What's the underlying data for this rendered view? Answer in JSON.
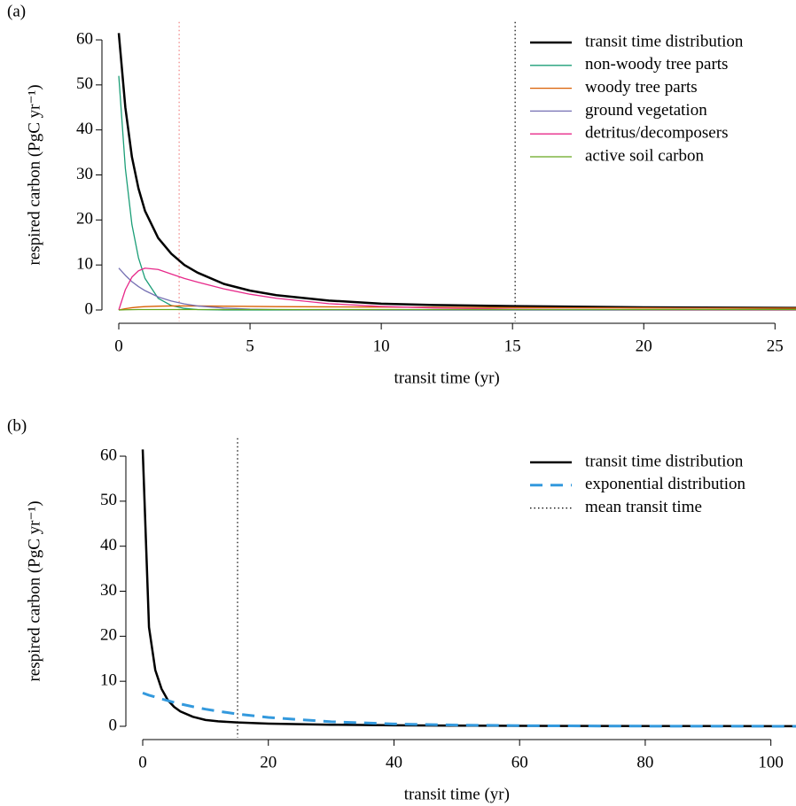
{
  "chart_data": [
    {
      "type": "line",
      "panel_label": "(a)",
      "xlabel": "transit time (yr)",
      "ylabel": "respired carbon (PgC yr⁻¹)",
      "x": [
        0,
        0.25,
        0.5,
        0.75,
        1,
        1.5,
        2,
        2.5,
        3,
        4,
        5,
        6,
        8,
        10,
        12,
        15,
        20,
        26
      ],
      "series": [
        {
          "name": "transit time distribution",
          "color": "#000000",
          "linewidth": 2.5,
          "values": [
            61.5,
            45,
            34,
            27,
            22,
            16,
            12.5,
            10,
            8.3,
            5.8,
            4.3,
            3.3,
            2.1,
            1.4,
            1.1,
            0.85,
            0.6,
            0.45
          ]
        },
        {
          "name": "non-woody tree parts",
          "color": "#1b9e77",
          "linewidth": 1.3,
          "values": [
            52,
            31.5,
            19,
            11.6,
            7,
            2.6,
            1,
            0.35,
            0.1,
            0,
            0,
            0,
            0,
            0,
            0,
            0,
            0,
            0
          ]
        },
        {
          "name": "woody tree parts",
          "color": "#d95f02",
          "linewidth": 1.3,
          "values": [
            0,
            0.3,
            0.5,
            0.65,
            0.75,
            0.85,
            0.9,
            0.9,
            0.9,
            0.85,
            0.8,
            0.75,
            0.7,
            0.65,
            0.6,
            0.55,
            0.45,
            0.4
          ]
        },
        {
          "name": "ground vegetation",
          "color": "#7570b3",
          "linewidth": 1.3,
          "values": [
            9.3,
            7.7,
            6.3,
            5.2,
            4.3,
            2.9,
            2,
            1.35,
            0.9,
            0.43,
            0.2,
            0.1,
            0.02,
            0,
            0,
            0,
            0,
            0
          ]
        },
        {
          "name": "detritus/decomposers",
          "color": "#e7298a",
          "linewidth": 1.3,
          "values": [
            0,
            4.5,
            7.3,
            8.7,
            9.3,
            9,
            8,
            7,
            6.2,
            4.7,
            3.5,
            2.6,
            1.4,
            0.8,
            0.45,
            0.2,
            0.07,
            0.02
          ]
        },
        {
          "name": "active soil carbon",
          "color": "#66a61e",
          "linewidth": 1.3,
          "values": [
            0,
            0.05,
            0.08,
            0.1,
            0.1,
            0.1,
            0.1,
            0.1,
            0.1,
            0.1,
            0.1,
            0.1,
            0.1,
            0.1,
            0.1,
            0.1,
            0.1,
            0.1
          ]
        }
      ],
      "vlines": [
        {
          "value": 2.3,
          "color": "#f08080"
        },
        {
          "value": 15.1,
          "color": "#000000"
        }
      ],
      "xlim": [
        0,
        25.8
      ],
      "xticks": [
        0,
        5,
        10,
        15,
        20,
        25
      ],
      "ylim": [
        -2.5,
        64
      ],
      "yticks": [
        0,
        10,
        20,
        30,
        40,
        50,
        60
      ],
      "legend": "top-right"
    },
    {
      "type": "line",
      "panel_label": "(b)",
      "xlabel": "transit time (yr)",
      "ylabel": "respired carbon (PgC yr⁻¹)",
      "x": [
        0,
        1,
        2,
        3,
        4,
        5,
        6,
        8,
        10,
        12,
        15,
        20,
        30,
        40,
        50,
        60,
        70,
        80,
        90,
        100,
        104
      ],
      "series": [
        {
          "name": "transit time distribution",
          "color": "#000000",
          "linewidth": 2.5,
          "values": [
            61.5,
            22,
            12.5,
            8.3,
            5.8,
            4.3,
            3.3,
            2.1,
            1.4,
            1.1,
            0.85,
            0.6,
            0.35,
            0.22,
            0.15,
            0.1,
            0.07,
            0.05,
            0.04,
            0.03,
            0.03
          ]
        },
        {
          "name": "exponential distribution",
          "color": "#3399dd",
          "linewidth": 3,
          "dash": "dashed",
          "values": [
            7.4,
            6.9,
            6.5,
            6.06,
            5.7,
            5.3,
            4.96,
            4.35,
            3.8,
            3.34,
            2.74,
            1.96,
            1.01,
            0.52,
            0.27,
            0.14,
            0.07,
            0.037,
            0.019,
            0.01,
            0.008
          ]
        }
      ],
      "vlines": [
        {
          "name": "mean transit time",
          "value": 15.1,
          "color": "#000000"
        }
      ],
      "xlim": [
        0,
        104
      ],
      "xticks": [
        0,
        20,
        40,
        60,
        80,
        100
      ],
      "ylim": [
        -2.5,
        64
      ],
      "yticks": [
        0,
        10,
        20,
        30,
        40,
        50,
        60
      ],
      "legend": "top-right"
    }
  ]
}
